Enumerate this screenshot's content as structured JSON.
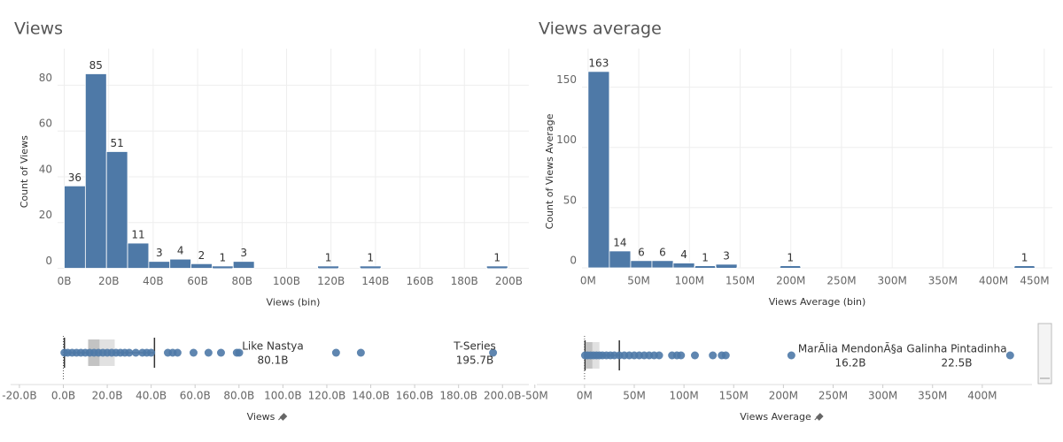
{
  "chart_data": [
    {
      "type": "histogram",
      "title": "Views",
      "x_label": "Views (bin)",
      "y_label": "Count of Views",
      "color": "#4e79a7",
      "grid": true,
      "bins": [
        0,
        9.5,
        19,
        28.5,
        38,
        47.5,
        57,
        66.5,
        76,
        85.5,
        95,
        104.5,
        114,
        123.5,
        133,
        142.5,
        152,
        161.5,
        171,
        180.5,
        190,
        199.5
      ],
      "values": [
        36,
        85,
        51,
        11,
        3,
        4,
        2,
        1,
        3,
        0,
        0,
        0,
        1,
        0,
        1,
        0,
        0,
        0,
        0,
        0,
        1
      ],
      "xlim": [
        -3,
        209
      ],
      "xticks": [
        {
          "value": 0,
          "label": "0B"
        },
        {
          "value": 20,
          "label": "20B"
        },
        {
          "value": 40,
          "label": "40B"
        },
        {
          "value": 60,
          "label": "60B"
        },
        {
          "value": 80,
          "label": "80B"
        },
        {
          "value": 100,
          "label": "100B"
        },
        {
          "value": 120,
          "label": "120B"
        },
        {
          "value": 140,
          "label": "140B"
        },
        {
          "value": 160,
          "label": "160B"
        },
        {
          "value": 180,
          "label": "180B"
        },
        {
          "value": 200,
          "label": "200B"
        }
      ],
      "ylim": [
        0,
        96
      ],
      "yticks": [
        0,
        20,
        40,
        60,
        80
      ]
    },
    {
      "type": "histogram",
      "title": "Views average",
      "x_label": "Views Average (bin)",
      "y_label": "Count of Views Average",
      "color": "#4e79a7",
      "grid": true,
      "bins": [
        0,
        21,
        42,
        63,
        84,
        105,
        126,
        147,
        168,
        189,
        210,
        231,
        252,
        273,
        294,
        315,
        336,
        357,
        378,
        399,
        420,
        441
      ],
      "values": [
        163,
        14,
        6,
        6,
        4,
        1,
        3,
        0,
        0,
        1,
        0,
        0,
        0,
        0,
        0,
        0,
        0,
        0,
        0,
        0,
        1
      ],
      "xlim": [
        -6,
        458
      ],
      "xticks": [
        {
          "value": 0,
          "label": "0M"
        },
        {
          "value": 50,
          "label": "50M"
        },
        {
          "value": 100,
          "label": "100M"
        },
        {
          "value": 150,
          "label": "150M"
        },
        {
          "value": 200,
          "label": "200M"
        },
        {
          "value": 250,
          "label": "250M"
        },
        {
          "value": 300,
          "label": "300M"
        },
        {
          "value": 350,
          "label": "350M"
        },
        {
          "value": 400,
          "label": "400M"
        },
        {
          "value": 450,
          "label": "450M"
        }
      ],
      "ylim": [
        0,
        182
      ],
      "yticks": [
        0,
        50,
        100,
        150
      ]
    },
    {
      "type": "box",
      "x_label": "Views",
      "color": "#4e79a7",
      "xlim": [
        -24,
        212
      ],
      "xticks": [
        {
          "value": -20,
          "label": "-20.0B"
        },
        {
          "value": 0,
          "label": "0.0B"
        },
        {
          "value": 20,
          "label": "20.0B"
        },
        {
          "value": 40,
          "label": "40.0B"
        },
        {
          "value": 60,
          "label": "60.0B"
        },
        {
          "value": 80,
          "label": "80.0B"
        },
        {
          "value": 100,
          "label": "100.0B"
        },
        {
          "value": 120,
          "label": "120.0B"
        },
        {
          "value": 140,
          "label": "140.0B"
        },
        {
          "value": 160,
          "label": "160.0B"
        },
        {
          "value": 180,
          "label": "180.0B"
        },
        {
          "value": 200,
          "label": "200.0B"
        }
      ],
      "box": {
        "whisker_low": 0.5,
        "q1": 11.3,
        "median": 16.5,
        "q3": 23.4,
        "whisker_high": 41.5
      },
      "points": [
        0.5,
        2,
        4,
        6,
        8,
        10,
        12,
        14,
        16,
        18,
        20,
        22,
        24,
        26,
        28,
        30,
        33,
        36,
        38,
        40,
        47.6,
        49.8,
        52,
        59.3,
        66.1,
        71.8,
        79,
        80.1,
        124.2,
        135.5,
        195.7
      ],
      "annotations": [
        {
          "name": "Like Nastya",
          "label": "80.1B"
        },
        {
          "name": "T-Series",
          "label": "195.7B"
        }
      ]
    },
    {
      "type": "box",
      "x_label": "Views Average",
      "color": "#4e79a7",
      "xlim": [
        -48,
        450
      ],
      "xticks": [
        {
          "value": -50,
          "label": "-50M"
        },
        {
          "value": 0,
          "label": "0M"
        },
        {
          "value": 50,
          "label": "50M"
        },
        {
          "value": 100,
          "label": "100M"
        },
        {
          "value": 150,
          "label": "150M"
        },
        {
          "value": 200,
          "label": "200M"
        },
        {
          "value": 250,
          "label": "250M"
        },
        {
          "value": 300,
          "label": "300M"
        },
        {
          "value": 350,
          "label": "350M"
        },
        {
          "value": 400,
          "label": "400M"
        }
      ],
      "box": {
        "whisker_low": 0.5,
        "q1": 1,
        "median": 8,
        "q3": 15,
        "whisker_high": 35
      },
      "points": [
        0.5,
        3,
        6,
        9,
        12,
        15,
        18,
        22,
        26,
        30,
        35,
        40,
        45,
        50,
        55,
        60,
        65,
        70,
        75,
        88,
        93,
        97,
        111,
        129,
        138,
        142,
        208,
        428
      ],
      "annotations": [
        {
          "name": "MarÃlia MendonÃ§a",
          "label": "16.2B"
        },
        {
          "name": "Galinha Pintadinha",
          "label": "22.5B"
        }
      ]
    }
  ]
}
